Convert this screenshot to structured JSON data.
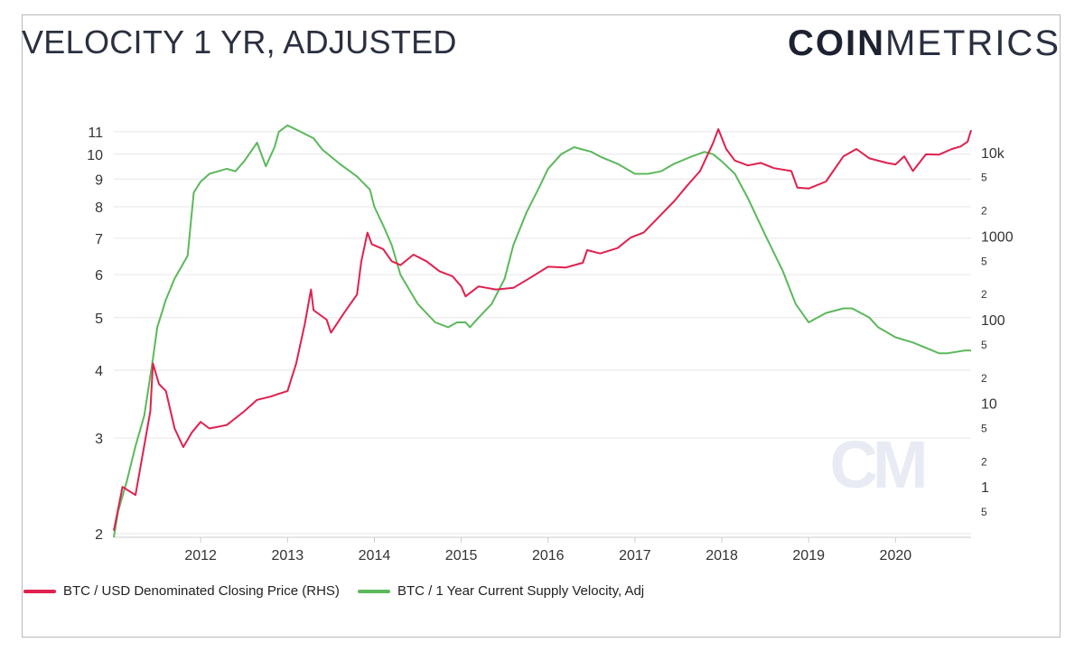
{
  "header": {
    "title": "VELOCITY 1 YR, ADJUSTED",
    "brand_bold": "COIN",
    "brand_light": "METRICS",
    "watermark": "CM"
  },
  "colors": {
    "price": "#e0204e",
    "velocity": "#5cb85c",
    "grid": "#e6e6e6",
    "text": "#333333"
  },
  "chart_data": {
    "type": "line",
    "title": "VELOCITY 1 YR, ADJUSTED",
    "grid": true,
    "legend_placement": "bottom-left",
    "x_ticks": [
      "2012",
      "2013",
      "2014",
      "2015",
      "2016",
      "2017",
      "2018",
      "2019",
      "2020"
    ],
    "x_range": [
      2011.0,
      2020.87
    ],
    "left_axis": {
      "scale": "log",
      "range": [
        1.97,
        11.6
      ],
      "ticks": [
        2,
        3,
        4,
        5,
        6,
        7,
        8,
        9,
        10,
        11
      ],
      "tick_labels": [
        "2",
        "3",
        "4",
        "5",
        "6",
        "7",
        "8",
        "9",
        "10",
        "11"
      ]
    },
    "right_axis": {
      "scale": "log",
      "range": [
        0.25,
        25000
      ],
      "major_ticks": [
        1,
        10,
        100,
        1000,
        10000
      ],
      "major_labels": [
        "1",
        "10",
        "100",
        "1000",
        "10k"
      ],
      "minor_ticks": [
        5,
        20,
        50,
        200,
        500,
        2000,
        5000
      ],
      "minor_labels": [
        "5",
        "2",
        "5",
        "2",
        "5",
        "2",
        "5",
        "2",
        "5"
      ],
      "minor_positions": [
        0.5,
        2,
        5,
        20,
        50,
        200,
        500,
        2000,
        5000
      ]
    },
    "series": [
      {
        "name": "BTC / USD Denominated Closing Price (RHS)",
        "axis": "right",
        "x": [
          2011.0,
          2011.1,
          2011.25,
          2011.42,
          2011.45,
          2011.52,
          2011.6,
          2011.7,
          2011.8,
          2011.9,
          2012.0,
          2012.1,
          2012.3,
          2012.5,
          2012.65,
          2012.8,
          2012.9,
          2013.0,
          2013.1,
          2013.2,
          2013.27,
          2013.3,
          2013.45,
          2013.5,
          2013.65,
          2013.8,
          2013.85,
          2013.92,
          2013.97,
          2014.1,
          2014.2,
          2014.3,
          2014.45,
          2014.6,
          2014.75,
          2014.9,
          2015.0,
          2015.05,
          2015.2,
          2015.4,
          2015.6,
          2015.8,
          2016.0,
          2016.2,
          2016.4,
          2016.45,
          2016.6,
          2016.8,
          2016.95,
          2017.1,
          2017.3,
          2017.45,
          2017.6,
          2017.75,
          2017.9,
          2017.96,
          2018.05,
          2018.15,
          2018.3,
          2018.45,
          2018.6,
          2018.8,
          2018.87,
          2019.0,
          2019.2,
          2019.4,
          2019.55,
          2019.7,
          2019.9,
          2020.0,
          2020.1,
          2020.2,
          2020.35,
          2020.5,
          2020.65,
          2020.75,
          2020.83,
          2020.87
        ],
        "y": [
          0.3,
          1.0,
          0.8,
          8.0,
          30,
          17,
          14,
          5,
          3,
          4.5,
          6,
          5,
          5.5,
          8,
          11,
          12,
          13,
          14,
          30,
          90,
          230,
          130,
          100,
          70,
          120,
          200,
          500,
          1100,
          800,
          700,
          500,
          450,
          600,
          500,
          380,
          330,
          250,
          190,
          250,
          230,
          240,
          320,
          430,
          420,
          480,
          680,
          620,
          720,
          960,
          1100,
          1800,
          2600,
          4000,
          6000,
          13000,
          19000,
          11000,
          8000,
          7000,
          7500,
          6500,
          6000,
          3800,
          3700,
          4500,
          9000,
          11000,
          8500,
          7500,
          7200,
          9000,
          6000,
          9500,
          9400,
          11000,
          11800,
          13500,
          18500
        ]
      },
      {
        "name": "BTC / 1 Year Current Supply Velocity, Adj",
        "axis": "left",
        "x": [
          2011.0,
          2011.05,
          2011.15,
          2011.25,
          2011.35,
          2011.45,
          2011.5,
          2011.6,
          2011.7,
          2011.85,
          2011.92,
          2012.0,
          2012.1,
          2012.2,
          2012.3,
          2012.4,
          2012.5,
          2012.65,
          2012.75,
          2012.85,
          2012.9,
          2013.0,
          2013.15,
          2013.3,
          2013.4,
          2013.6,
          2013.8,
          2013.95,
          2014.0,
          2014.1,
          2014.2,
          2014.3,
          2014.5,
          2014.7,
          2014.85,
          2014.95,
          2015.05,
          2015.1,
          2015.2,
          2015.35,
          2015.5,
          2015.6,
          2015.75,
          2015.9,
          2016.0,
          2016.15,
          2016.3,
          2016.5,
          2016.6,
          2016.8,
          2017.0,
          2017.15,
          2017.3,
          2017.45,
          2017.65,
          2017.8,
          2017.9,
          2018.0,
          2018.15,
          2018.3,
          2018.5,
          2018.7,
          2018.85,
          2019.0,
          2019.2,
          2019.4,
          2019.5,
          2019.7,
          2019.8,
          2020.0,
          2020.2,
          2020.35,
          2020.5,
          2020.6,
          2020.8,
          2020.87
        ],
        "y": [
          1.97,
          2.2,
          2.5,
          2.9,
          3.3,
          4.2,
          4.8,
          5.4,
          5.9,
          6.5,
          8.5,
          8.9,
          9.2,
          9.3,
          9.4,
          9.3,
          9.7,
          10.5,
          9.5,
          10.3,
          11.0,
          11.3,
          11.0,
          10.7,
          10.2,
          9.6,
          9.1,
          8.6,
          8.0,
          7.4,
          6.8,
          6.0,
          5.3,
          4.9,
          4.8,
          4.9,
          4.9,
          4.8,
          5.0,
          5.3,
          5.9,
          6.8,
          7.8,
          8.7,
          9.4,
          10.0,
          10.3,
          10.1,
          9.9,
          9.6,
          9.2,
          9.2,
          9.3,
          9.6,
          9.9,
          10.1,
          10.0,
          9.7,
          9.2,
          8.3,
          7.1,
          6.1,
          5.3,
          4.9,
          5.1,
          5.2,
          5.2,
          5.0,
          4.8,
          4.6,
          4.5,
          4.4,
          4.3,
          4.3,
          4.35,
          4.35
        ]
      }
    ]
  }
}
